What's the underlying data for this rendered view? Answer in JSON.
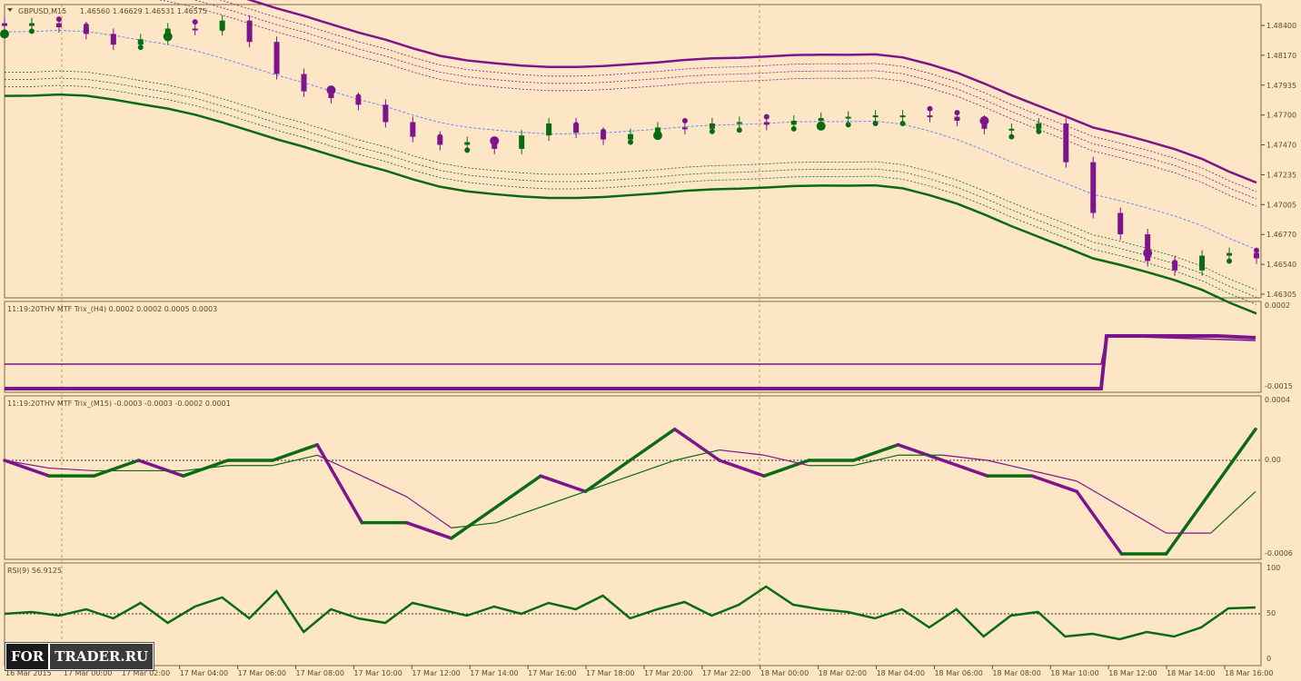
{
  "header": {
    "symbol": "GBPUSD,M15",
    "ohlc": "1.46560 1.46629 1.46531 1.46575"
  },
  "panels": {
    "price": {
      "yticks": [
        "1.48400",
        "1.48170",
        "1.47935",
        "1.47700",
        "1.47470",
        "1.47235",
        "1.47005",
        "1.46770",
        "1.46540",
        "1.46305"
      ]
    },
    "trix_h4": {
      "label": "11:19:20THV MTF Trix_(H4) 0.0002 0.0002 0.0005 0.0003",
      "yticks": [
        "0.0002",
        "-0.0015"
      ]
    },
    "trix_m15": {
      "label": "11:19:20THV MTF Trix_(M15) -0.0003 -0.0003 -0.0002 0.0001",
      "yticks": [
        "0.0004",
        "0.00",
        "-0.0006"
      ]
    },
    "rsi": {
      "label": "RSI(9) 56.9125",
      "yticks": [
        "100",
        "50",
        "0"
      ]
    }
  },
  "xaxis": {
    "labels": [
      "16 Mar 2015",
      "17 Mar 00:00",
      "17 Mar 02:00",
      "17 Mar 04:00",
      "17 Mar 06:00",
      "17 Mar 08:00",
      "17 Mar 10:00",
      "17 Mar 12:00",
      "17 Mar 14:00",
      "17 Mar 16:00",
      "17 Mar 18:00",
      "17 Mar 20:00",
      "17 Mar 22:00",
      "18 Mar 00:00",
      "18 Mar 02:00",
      "18 Mar 04:00",
      "18 Mar 06:00",
      "18 Mar 08:00",
      "18 Mar 10:00",
      "18 Mar 12:00",
      "18 Mar 14:00",
      "18 Mar 16:00"
    ]
  },
  "logo": {
    "part1": "FOR",
    "part2": "TRADER.RU"
  },
  "colors": {
    "background": "#fde6c5",
    "bull": "#0a6b12",
    "bear": "#7e148c",
    "grid": "#c8a040",
    "signal": "#6b8cff"
  },
  "chart_data": [
    {
      "type": "line",
      "title": "GBPUSD,M15",
      "series": [
        {
          "name": "Close",
          "values": [
            1.4832,
            1.4834,
            1.4831,
            1.4826,
            1.4818,
            1.4822,
            1.483,
            1.4829,
            1.4836,
            1.482,
            1.4796,
            1.4783,
            1.4778,
            1.4773,
            1.476,
            1.4749,
            1.4743,
            1.4745,
            1.474,
            1.475,
            1.4759,
            1.4752,
            1.4747,
            1.4751,
            1.4756,
            1.4755,
            1.4759,
            1.476,
            1.4758,
            1.4761,
            1.4763,
            1.4764,
            1.4765,
            1.4765,
            1.4764,
            1.4761,
            1.4755,
            1.4755,
            1.4759,
            1.473,
            1.4692,
            1.4676,
            1.4656,
            1.4649,
            1.466,
            1.4662,
            1.4658
          ]
        }
      ],
      "ylim": [
        1.46305,
        1.4848
      ]
    },
    {
      "type": "line",
      "title": "11:19:20THV MTF Trix_(H4) 0.0002 0.0002 0.0005 0.0003",
      "series": [
        {
          "values": [
            -0.0015,
            -0.0015,
            -0.0015,
            0.0002,
            0.0002
          ]
        }
      ]
    },
    {
      "type": "line",
      "title": "11:19:20THV MTF Trix_(M15) -0.0003 -0.0003 -0.0002 0.0001",
      "series": [
        {
          "values": [
            0.0,
            -0.0001,
            -0.0001,
            0.0,
            -0.0001,
            0.0,
            0.0,
            0.0001,
            -0.0004,
            -0.0004,
            -0.0005,
            -0.0003,
            -0.0001,
            -0.0002,
            0.0,
            0.0002,
            0.0,
            -0.0001,
            0.0,
            0.0,
            0.0001,
            0.0,
            -0.0001,
            -0.0001,
            -0.0002,
            -0.0006,
            -0.0006,
            -0.0002,
            0.0002
          ]
        }
      ]
    },
    {
      "type": "line",
      "title": "RSI(9) 56.9125",
      "series": [
        {
          "values": [
            50,
            52,
            48,
            55,
            45,
            62,
            40,
            58,
            68,
            45,
            75,
            30,
            55,
            45,
            40,
            62,
            55,
            48,
            58,
            50,
            62,
            55,
            70,
            45,
            55,
            63,
            48,
            60,
            80,
            60,
            55,
            52,
            45,
            55,
            35,
            55,
            25,
            48,
            52,
            25,
            28,
            22,
            30,
            25,
            35,
            56,
            57
          ]
        }
      ],
      "ylim": [
        0,
        100
      ]
    }
  ]
}
